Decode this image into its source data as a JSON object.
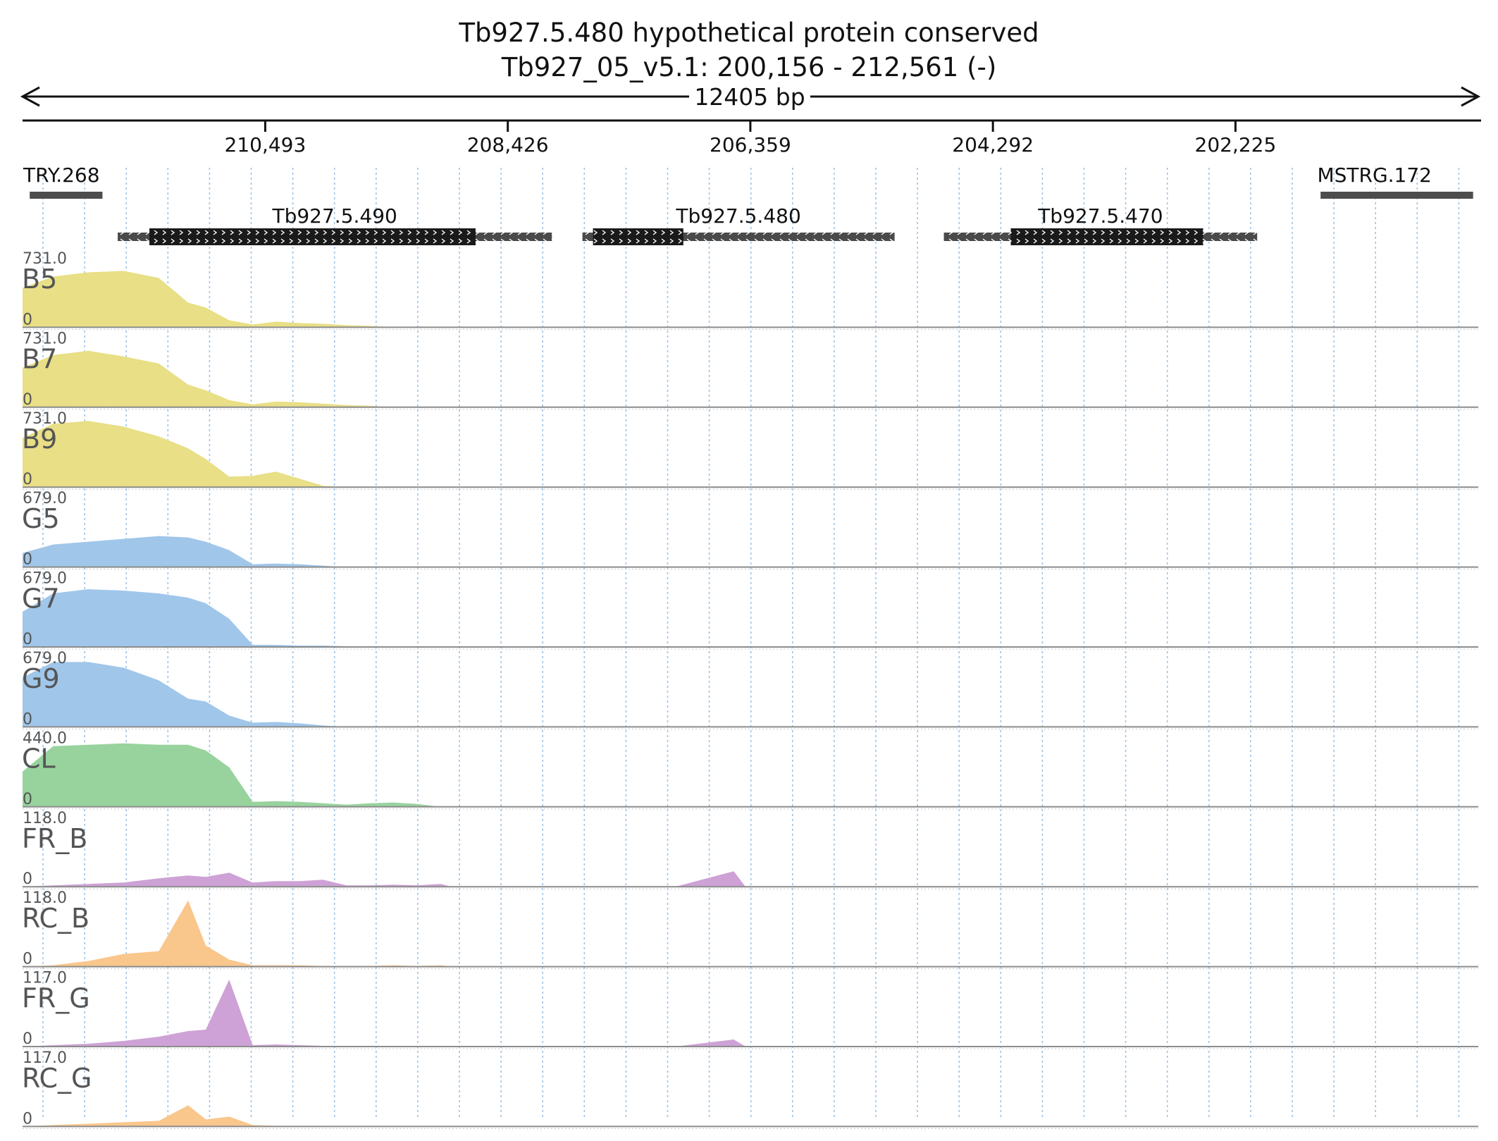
{
  "header": {
    "title": "Tb927.5.480  hypothetical protein  conserved",
    "subtitle": "Tb927_05_v5.1: 200,156 - 212,561 (-)",
    "span_label": "12405 bp"
  },
  "chart_data": {
    "type": "area",
    "region": {
      "chrom": "Tb927_05_v5.1",
      "start": 200156,
      "end": 212561,
      "strand": "-"
    },
    "axis_ticks": [
      210493,
      208426,
      206359,
      204292,
      202225
    ],
    "tick_labels": [
      "210,493",
      "208,426",
      "206,359",
      "204,292",
      "202,225"
    ],
    "features": [
      {
        "name": "TRY.268",
        "start": 212500,
        "end": 211880
      },
      {
        "name": "MSTRG.172",
        "start": 201500,
        "end": 200200
      }
    ],
    "genes": [
      {
        "name": "Tb927.5.490",
        "start": 211750,
        "end": 208050,
        "cds_start": 211480,
        "cds_end": 208700
      },
      {
        "name": "Tb927.5.480",
        "start": 207790,
        "end": 205130,
        "cds_start": 207700,
        "cds_end": 206930
      },
      {
        "name": "Tb927.5.470",
        "start": 204710,
        "end": 202040,
        "cds_start": 204140,
        "cds_end": 202500
      }
    ],
    "track_x": [
      212561,
      212300,
      212000,
      211700,
      211400,
      211150,
      211000,
      210800,
      210600,
      210400,
      210200,
      210000,
      209800,
      209600,
      209400,
      209200,
      209000,
      208900,
      208800,
      208600,
      208400,
      208000,
      207000,
      206500,
      206400,
      206300,
      206000,
      204000,
      202000,
      200156
    ],
    "tracks": [
      {
        "name": "B5",
        "max": "731.0",
        "min": "0",
        "color": "#e8df86",
        "values": [
          0.56,
          0.72,
          0.78,
          0.8,
          0.7,
          0.35,
          0.28,
          0.1,
          0.04,
          0.08,
          0.06,
          0.05,
          0.03,
          0.02,
          0,
          0,
          0,
          0,
          0,
          0,
          0,
          0,
          0,
          0,
          0,
          0,
          0,
          0,
          0,
          0
        ]
      },
      {
        "name": "B7",
        "max": "731.0",
        "min": "0",
        "color": "#e8df86",
        "values": [
          0.56,
          0.74,
          0.8,
          0.72,
          0.62,
          0.32,
          0.24,
          0.1,
          0.04,
          0.08,
          0.07,
          0.05,
          0.03,
          0.02,
          0,
          0,
          0,
          0,
          0,
          0,
          0,
          0,
          0,
          0,
          0,
          0,
          0,
          0,
          0,
          0
        ]
      },
      {
        "name": "B9",
        "max": "731.0",
        "min": "0",
        "color": "#e8df86",
        "values": [
          0.7,
          0.9,
          0.94,
          0.86,
          0.72,
          0.55,
          0.4,
          0.15,
          0.16,
          0.22,
          0.12,
          0.02,
          0,
          0,
          0,
          0,
          0,
          0,
          0,
          0,
          0,
          0,
          0,
          0,
          0,
          0,
          0,
          0,
          0,
          0
        ]
      },
      {
        "name": "G5",
        "max": "679.0",
        "min": "0",
        "color": "#a0c6ea",
        "values": [
          0.2,
          0.32,
          0.36,
          0.4,
          0.44,
          0.42,
          0.36,
          0.24,
          0.04,
          0.05,
          0.04,
          0.02,
          0,
          0,
          0,
          0,
          0,
          0,
          0,
          0,
          0,
          0,
          0,
          0,
          0,
          0,
          0,
          0,
          0,
          0
        ]
      },
      {
        "name": "G7",
        "max": "679.0",
        "min": "0",
        "color": "#a0c6ea",
        "values": [
          0.5,
          0.76,
          0.82,
          0.8,
          0.76,
          0.7,
          0.62,
          0.4,
          0.03,
          0.03,
          0.02,
          0.02,
          0.01,
          0,
          0,
          0,
          0,
          0,
          0,
          0,
          0,
          0,
          0,
          0,
          0,
          0,
          0,
          0,
          0,
          0
        ]
      },
      {
        "name": "G9",
        "max": "679.0",
        "min": "0",
        "color": "#a0c6ea",
        "values": [
          0.7,
          0.92,
          0.92,
          0.84,
          0.66,
          0.4,
          0.36,
          0.16,
          0.06,
          0.07,
          0.05,
          0.02,
          0,
          0,
          0,
          0,
          0,
          0,
          0,
          0,
          0,
          0,
          0,
          0,
          0,
          0,
          0,
          0,
          0,
          0
        ]
      },
      {
        "name": "CL",
        "max": "440.0",
        "min": "0",
        "color": "#98d39e",
        "values": [
          0.5,
          0.86,
          0.88,
          0.9,
          0.88,
          0.88,
          0.8,
          0.56,
          0.07,
          0.08,
          0.07,
          0.05,
          0.03,
          0.05,
          0.06,
          0.04,
          0,
          0,
          0,
          0,
          0,
          0,
          0,
          0,
          0,
          0,
          0,
          0,
          0,
          0
        ]
      },
      {
        "name": "FR_B",
        "max": "118.0",
        "min": "0",
        "color": "#cea2d6",
        "values": [
          0,
          0.02,
          0.04,
          0.06,
          0.12,
          0.16,
          0.14,
          0.2,
          0.06,
          0.08,
          0.08,
          0.1,
          0.02,
          0.02,
          0.03,
          0.02,
          0.04,
          0,
          0,
          0,
          0,
          0,
          0,
          0.22,
          0,
          0,
          0,
          0,
          0,
          0
        ]
      },
      {
        "name": "RC_B",
        "max": "118.0",
        "min": "0",
        "color": "#f9c68c",
        "values": [
          0,
          0.02,
          0.08,
          0.18,
          0.22,
          0.94,
          0.3,
          0.1,
          0.02,
          0.02,
          0.02,
          0.01,
          0.01,
          0.01,
          0.02,
          0.01,
          0.02,
          0,
          0,
          0,
          0,
          0,
          0,
          0,
          0,
          0,
          0,
          0,
          0,
          0
        ]
      },
      {
        "name": "FR_G",
        "max": "117.0",
        "min": "0",
        "color": "#cea2d6",
        "values": [
          0,
          0.02,
          0.04,
          0.08,
          0.14,
          0.22,
          0.24,
          0.95,
          0.02,
          0.03,
          0.02,
          0.01,
          0,
          0,
          0,
          0,
          0,
          0,
          0,
          0,
          0,
          0,
          0,
          0.1,
          0,
          0,
          0,
          0,
          0,
          0
        ]
      },
      {
        "name": "RC_G",
        "max": "117.0",
        "min": "0",
        "color": "#f9c68c",
        "values": [
          0,
          0.02,
          0.04,
          0.06,
          0.08,
          0.3,
          0.1,
          0.14,
          0.02,
          0.01,
          0.01,
          0.01,
          0,
          0,
          0,
          0,
          0,
          0,
          0,
          0,
          0,
          0,
          0,
          0,
          0,
          0,
          0,
          0,
          0,
          0
        ]
      }
    ]
  },
  "colors": {
    "grid": "#9cc3e6",
    "gene_bar": "#1a1a1a",
    "utr_bar": "#4a4a4a",
    "feature_bar": "#4d4d4d",
    "axis": "#111111",
    "separator": "#8c8c8c"
  }
}
